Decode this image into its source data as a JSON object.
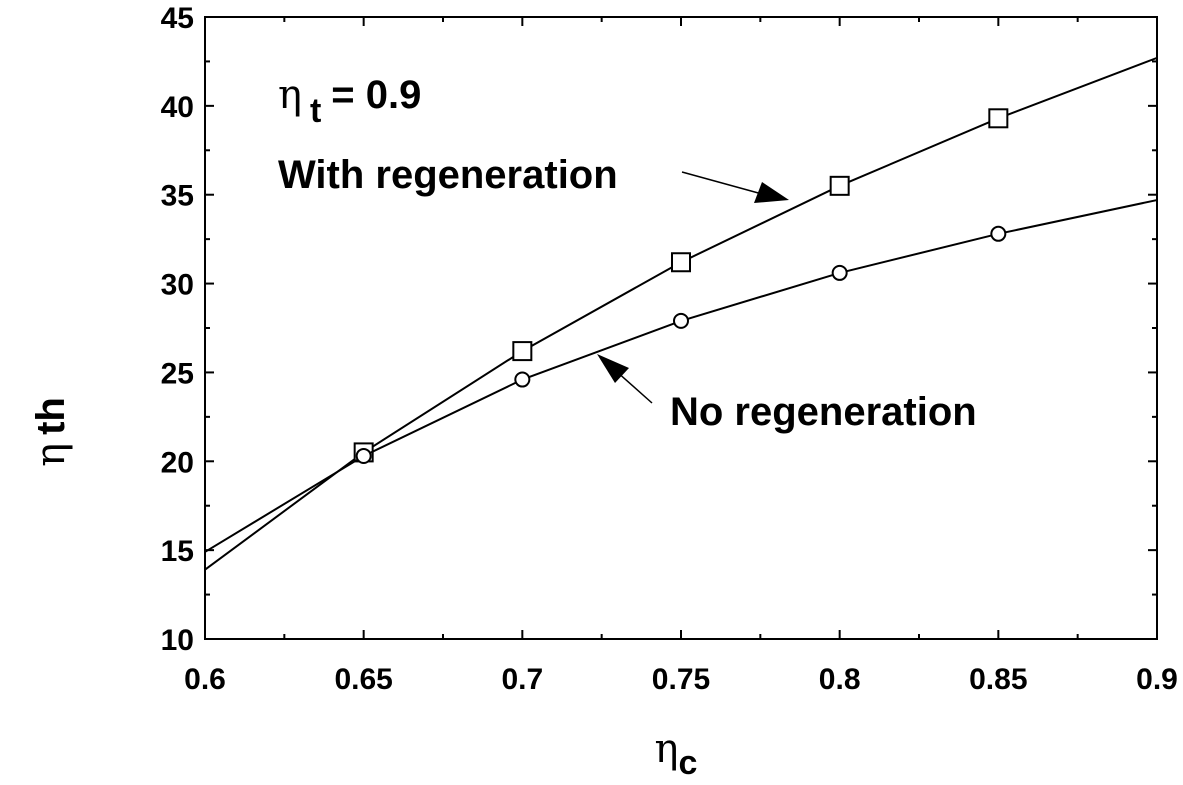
{
  "chart_data": {
    "type": "line",
    "title": "",
    "xlabel_symbol": "η",
    "xlabel_sub": "c",
    "ylabel_symbol": "η",
    "ylabel_sub": "th",
    "xlim": [
      0.6,
      0.9
    ],
    "ylim": [
      10,
      45
    ],
    "x_ticks": [
      0.6,
      0.65,
      0.7,
      0.75,
      0.8,
      0.85,
      0.9
    ],
    "x_tick_labels": [
      "0.6",
      "0.65",
      "0.7",
      "0.75",
      "0.8",
      "0.85",
      "0.9"
    ],
    "y_ticks": [
      10,
      15,
      20,
      25,
      30,
      35,
      40,
      45
    ],
    "y_tick_labels": [
      "10",
      "15",
      "20",
      "25",
      "30",
      "35",
      "40",
      "45"
    ],
    "grid": false,
    "series": [
      {
        "name": "With regeneration",
        "marker": "square",
        "line_x": [
          0.6,
          0.65,
          0.7,
          0.75,
          0.8,
          0.85,
          0.9
        ],
        "line_y": [
          13.9,
          20.5,
          26.2,
          31.2,
          35.5,
          39.3,
          42.7
        ],
        "marker_x": [
          0.65,
          0.7,
          0.75,
          0.8,
          0.85
        ],
        "marker_y": [
          20.5,
          26.2,
          31.2,
          35.5,
          39.3
        ]
      },
      {
        "name": "No regeneration",
        "marker": "circle",
        "line_x": [
          0.6,
          0.65,
          0.7,
          0.75,
          0.8,
          0.85,
          0.9
        ],
        "line_y": [
          14.9,
          20.3,
          24.6,
          27.9,
          30.6,
          32.8,
          34.7
        ],
        "marker_x": [
          0.65,
          0.7,
          0.75,
          0.8,
          0.85
        ],
        "marker_y": [
          20.3,
          24.6,
          27.9,
          30.6,
          32.8
        ]
      }
    ],
    "annotations": {
      "condition_symbol": "η",
      "condition_sub": "t",
      "condition_value": "= 0.9",
      "with_label": "With regeneration",
      "no_label": "No regeneration"
    }
  }
}
